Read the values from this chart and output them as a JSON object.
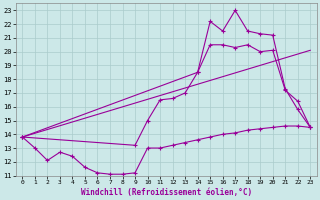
{
  "xlabel": "Windchill (Refroidissement éolien,°C)",
  "bg_color": "#cce8e8",
  "grid_color": "#aacccc",
  "line_color": "#990099",
  "xlim": [
    -0.5,
    23.5
  ],
  "ylim": [
    11,
    23.5
  ],
  "xticks": [
    0,
    1,
    2,
    3,
    4,
    5,
    6,
    7,
    8,
    9,
    10,
    11,
    12,
    13,
    14,
    15,
    16,
    17,
    18,
    19,
    20,
    21,
    22,
    23
  ],
  "yticks": [
    11,
    12,
    13,
    14,
    15,
    16,
    17,
    18,
    19,
    20,
    21,
    22,
    23
  ],
  "line1_x": [
    0,
    1,
    2,
    3,
    4,
    5,
    6,
    7,
    8,
    9,
    10,
    11,
    12,
    13,
    14,
    15,
    16,
    17,
    18,
    19,
    20,
    21,
    22,
    23
  ],
  "line1_y": [
    13.8,
    13.0,
    12.1,
    12.7,
    12.4,
    11.6,
    11.2,
    11.1,
    11.1,
    11.2,
    13.0,
    13.0,
    13.2,
    13.4,
    13.6,
    13.8,
    14.0,
    14.1,
    14.3,
    14.4,
    14.5,
    14.6,
    14.6,
    14.5
  ],
  "line2_x": [
    0,
    9,
    10,
    11,
    12,
    13,
    14,
    15,
    16,
    17,
    18,
    19,
    20,
    21,
    22,
    23
  ],
  "line2_y": [
    13.8,
    13.2,
    15.0,
    16.5,
    16.6,
    17.0,
    18.5,
    20.5,
    20.5,
    20.3,
    20.5,
    20.0,
    20.1,
    17.2,
    16.4,
    14.5
  ],
  "line3_x": [
    0,
    14,
    15,
    16,
    17,
    18,
    19,
    20,
    21,
    22,
    23
  ],
  "line3_y": [
    13.8,
    18.5,
    22.2,
    21.5,
    23.0,
    21.5,
    21.3,
    21.2,
    17.3,
    15.8,
    14.5
  ],
  "line4_x": [
    0,
    23
  ],
  "line4_y": [
    13.8,
    20.1
  ]
}
